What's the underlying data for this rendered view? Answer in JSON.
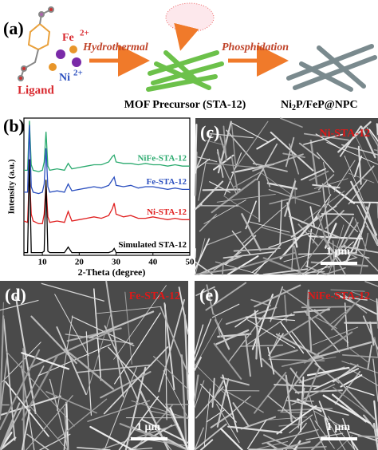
{
  "scheme": {
    "label": "(a)",
    "fe": "Fe",
    "fe_charge": "2+",
    "ni": "Ni",
    "ni_charge": "2+",
    "ligand": "Ligand",
    "step1": "Hydrothermal",
    "step2": "Phosphidation",
    "precursor": "MOF Precursor (STA-12)",
    "product_a": "Ni",
    "product_sub": "2",
    "product_b": "P/FeP@NPC"
  },
  "chart_data": {
    "type": "line",
    "label": "(b)",
    "xlabel": "2-Theta (degree)",
    "ylabel": "Intensity (a.u.)",
    "xlim": [
      5,
      50
    ],
    "xticks": [
      10,
      20,
      30,
      40,
      50
    ],
    "ylim": [
      0,
      100
    ],
    "x": [
      5,
      6,
      6.5,
      7,
      7.5,
      9,
      10,
      10.5,
      11,
      11.5,
      12,
      14,
      16,
      17,
      18,
      20,
      22,
      24,
      26,
      28,
      29,
      29.5,
      30,
      32,
      34,
      36,
      38,
      40,
      42,
      44,
      46,
      48,
      50
    ],
    "series": [
      {
        "name": "NiFe-STA-12",
        "color": "#2aaa6e",
        "values": [
          62,
          62,
          98,
          66,
          62,
          61,
          62,
          68,
          90,
          65,
          62,
          63,
          62,
          67,
          63,
          64,
          65,
          66,
          66,
          68,
          72,
          73,
          68,
          67,
          67,
          66,
          67,
          66,
          66,
          65,
          66,
          65,
          65
        ]
      },
      {
        "name": "Fe-STA-12",
        "color": "#2b4fbf",
        "values": [
          46,
          46,
          95,
          50,
          46,
          45,
          46,
          52,
          78,
          50,
          46,
          47,
          46,
          52,
          47,
          48,
          49,
          50,
          49,
          51,
          55,
          57,
          51,
          50,
          51,
          49,
          50,
          50,
          49,
          48,
          49,
          48,
          48
        ]
      },
      {
        "name": "Ni-STA-12",
        "color": "#e02020",
        "values": [
          25,
          24,
          60,
          30,
          25,
          23,
          23,
          30,
          52,
          28,
          24,
          25,
          24,
          32,
          25,
          26,
          27,
          28,
          27,
          29,
          34,
          38,
          30,
          28,
          29,
          27,
          27,
          28,
          27,
          26,
          27,
          26,
          26
        ]
      },
      {
        "name": "Simulated STA-12",
        "color": "#000000",
        "values": [
          2,
          2,
          70,
          2,
          2,
          2,
          2,
          3,
          55,
          3,
          2,
          2,
          2,
          6,
          2,
          2,
          2,
          2,
          2,
          2,
          3,
          5,
          2,
          2,
          2,
          2,
          2,
          2,
          2,
          2,
          2,
          2,
          2
        ]
      }
    ]
  },
  "sem": [
    {
      "label": "(c)",
      "name": "Ni-STA-12",
      "scale": "1 μm"
    },
    {
      "label": "(d)",
      "name": "Fe-STA-12",
      "scale": "1 μm"
    },
    {
      "label": "(e)",
      "name": "NiFe-STA-12",
      "scale": "1 μm"
    }
  ]
}
